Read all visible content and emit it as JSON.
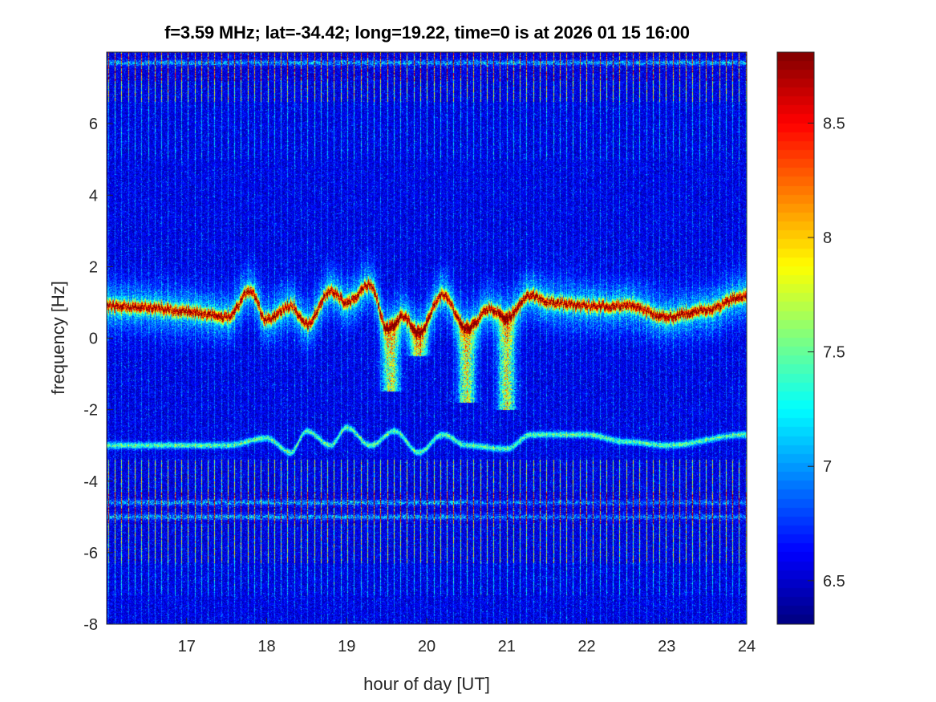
{
  "chart_data": {
    "type": "heatmap",
    "title": "f=3.59 MHz;  lat=-34.42; long=19.22, time=0 is at 2026 01 15 16:00",
    "xlabel": "hour of day [UT]",
    "ylabel": "frequency [Hz]",
    "xlim": [
      16,
      24
    ],
    "ylim": [
      -8,
      8
    ],
    "xticks": [
      17,
      18,
      19,
      20,
      21,
      22,
      23,
      24
    ],
    "yticks": [
      -8,
      -6,
      -4,
      -2,
      0,
      2,
      4,
      6
    ],
    "colormap": "jet",
    "clim": [
      6.31,
      8.81
    ],
    "colorbar_ticks": [
      6.5,
      7,
      7.5,
      8,
      8.5
    ],
    "background_level": 6.5,
    "main_doppler_trace": {
      "hour": [
        16,
        16.5,
        17,
        17.5,
        17.8,
        18.0,
        18.3,
        18.5,
        18.8,
        19.0,
        19.3,
        19.5,
        19.7,
        19.9,
        20.2,
        20.5,
        20.8,
        21.0,
        21.3,
        21.5,
        22.0,
        22.5,
        23.0,
        23.5,
        24.0
      ],
      "freq_hz": [
        0.9,
        0.85,
        0.75,
        0.6,
        1.3,
        0.5,
        0.9,
        0.4,
        1.3,
        1.0,
        1.5,
        0.3,
        0.6,
        0.2,
        1.2,
        0.3,
        0.8,
        0.6,
        1.2,
        1.0,
        0.9,
        0.9,
        0.6,
        0.8,
        1.2
      ],
      "peak_level": 8.7
    },
    "spread_features": {
      "hour": [
        19.55,
        19.9,
        20.5,
        21.0
      ],
      "min_freq_hz": [
        -1.5,
        -0.5,
        -1.8,
        -2.0
      ]
    },
    "secondary_trace": {
      "hour": [
        16.5,
        17.5,
        18.0,
        18.3,
        18.5,
        18.8,
        19.0,
        19.3,
        19.6,
        19.9,
        20.2,
        20.5,
        21.0,
        21.3,
        22.0,
        22.5,
        23.0,
        24.0
      ],
      "freq_hz": [
        -3.0,
        -3.0,
        -2.8,
        -3.2,
        -2.6,
        -3.0,
        -2.5,
        -3.0,
        -2.6,
        -3.2,
        -2.7,
        -3.0,
        -3.1,
        -2.7,
        -2.7,
        -2.9,
        -3.0,
        -2.7
      ],
      "peak_level": 7.6
    },
    "interference_lines_hz": [
      7.7,
      -4.6,
      -5.0
    ],
    "stripe_period_hours": 0.083
  }
}
